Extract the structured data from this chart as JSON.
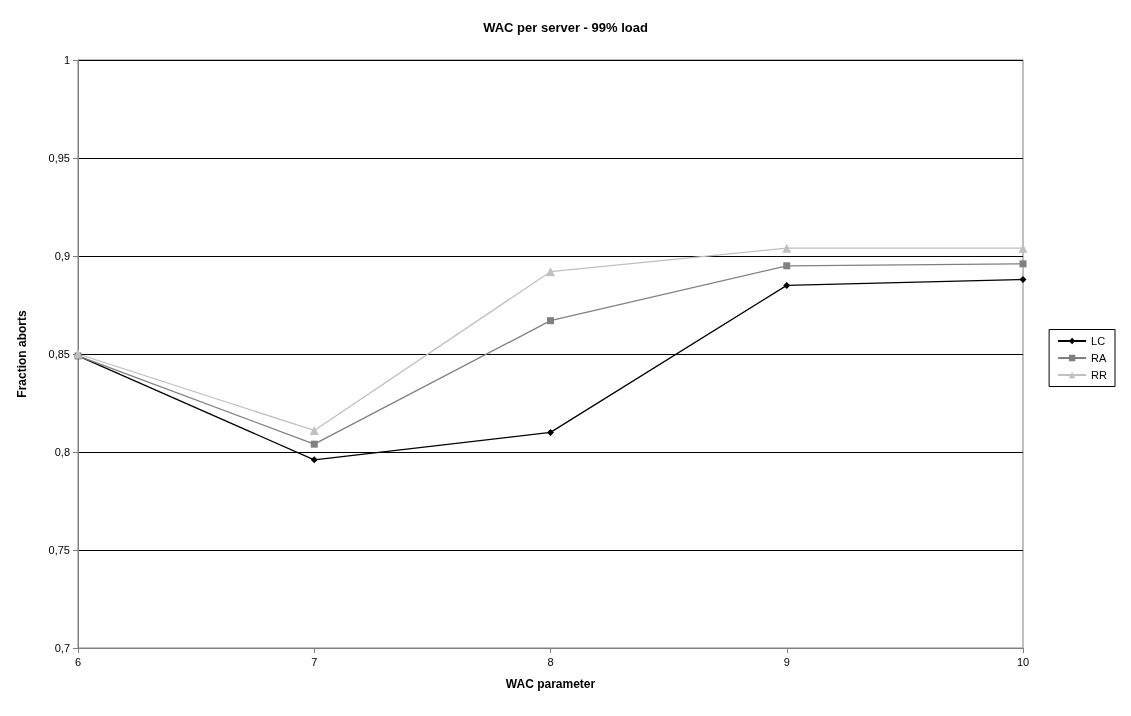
{
  "chart_data": {
    "type": "line",
    "title": "WAC per server - 99% load",
    "xlabel": "WAC parameter",
    "ylabel": "Fraction aborts",
    "x": [
      6,
      7,
      8,
      9,
      10
    ],
    "series": [
      {
        "name": "LC",
        "color": "#000000",
        "marker": "diamond",
        "values": [
          0.849,
          0.796,
          0.81,
          0.885,
          0.888
        ]
      },
      {
        "name": "RA",
        "color": "#808080",
        "marker": "square",
        "values": [
          0.849,
          0.804,
          0.867,
          0.895,
          0.896
        ]
      },
      {
        "name": "RR",
        "color": "#c0c0c0",
        "marker": "triangle",
        "values": [
          0.85,
          0.811,
          0.892,
          0.904,
          0.904
        ]
      }
    ],
    "xlim": [
      6,
      10
    ],
    "xticks": [
      6,
      7,
      8,
      9,
      10
    ],
    "ylim": [
      0.7,
      1
    ],
    "yticks": [
      {
        "value": 0.7,
        "label": "0,7"
      },
      {
        "value": 0.75,
        "label": "0,75"
      },
      {
        "value": 0.8,
        "label": "0,8"
      },
      {
        "value": 0.85,
        "label": "0,85"
      },
      {
        "value": 0.9,
        "label": "0,9"
      },
      {
        "value": 0.95,
        "label": "0,95"
      },
      {
        "value": 1,
        "label": "1"
      }
    ],
    "grid": "y",
    "legend": "right",
    "line_style": "solid"
  }
}
